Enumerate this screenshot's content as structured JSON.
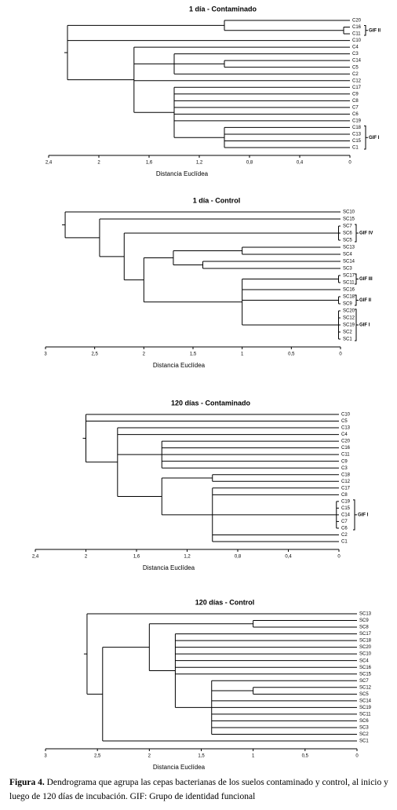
{
  "chart_data": [
    {
      "type": "dendrogram",
      "title": "1 día  -  Contaminado",
      "xlabel": "Distancia Euclídea",
      "xlim": [
        2.4,
        0
      ],
      "xticks": [
        {
          "value": 2.4,
          "label": "2,4"
        },
        2,
        {
          "value": 1.6,
          "label": "1,6"
        },
        {
          "value": 1.2,
          "label": "1,2"
        },
        {
          "value": 0.8,
          "label": "0,8"
        },
        {
          "value": 0.4,
          "label": "0,4"
        },
        0
      ],
      "tree": {
        "height": 2.25,
        "children": [
          {
            "height": 1.0,
            "children": [
              "C20",
              {
                "height": 0.05,
                "group": "GIF II",
                "children": [
                  "C16",
                  "C11"
                ]
              }
            ]
          },
          "C10",
          {
            "height": 1.72,
            "children": [
              "C4",
              {
                "height": 1.4,
                "children": [
                  "C3",
                  {
                    "height": 1.0,
                    "children": [
                      "C14",
                      "C5"
                    ]
                  },
                  "C2"
                ]
              },
              "C12",
              {
                "height": 1.4,
                "children": [
                  "C17",
                  "C9",
                  "C8",
                  "C7",
                  "C6",
                  "C19",
                  {
                    "height": 1.0,
                    "group": "GIF I",
                    "children": [
                      "C18",
                      "C13",
                      "C15",
                      "C1"
                    ]
                  }
                ]
              }
            ]
          }
        ]
      }
    },
    {
      "type": "dendrogram",
      "title": "1 día  -  Control",
      "xlabel": "Distancia Euclídea",
      "xlim": [
        3,
        0
      ],
      "xticks": [
        3,
        {
          "value": 2.5,
          "label": "2,5"
        },
        2,
        {
          "value": 1.5,
          "label": "1,5"
        },
        1,
        {
          "value": 0.5,
          "label": "0,5"
        },
        0
      ],
      "tree": {
        "height": 2.8,
        "children": [
          "SC10",
          {
            "height": 2.45,
            "children": [
              "SC15",
              {
                "height": 2.2,
                "children": [
                  {
                    "height": 0.02,
                    "group": "GIF IV",
                    "children": [
                      "SC7",
                      "SC6",
                      "SC5"
                    ]
                  },
                  {
                    "height": 2.0,
                    "children": [
                      {
                        "height": 1.7,
                        "children": [
                          {
                            "height": 1.0,
                            "children": [
                              "SC13",
                              "SC4"
                            ]
                          },
                          {
                            "height": 1.4,
                            "children": [
                              "SC14",
                              "SC3"
                            ]
                          }
                        ]
                      },
                      {
                        "height": 1.0,
                        "children": [
                          {
                            "height": 0.02,
                            "group": "GIF III",
                            "children": [
                              "SC17",
                              "SC11"
                            ]
                          },
                          "SC16",
                          {
                            "height": 0.02,
                            "group": "GIF II",
                            "children": [
                              "SC18",
                              "SC9"
                            ]
                          },
                          {
                            "height": 0.02,
                            "group": "GIF I",
                            "children": [
                              "SC20",
                              "SC12",
                              "SC19",
                              "SC2",
                              "SC1"
                            ]
                          }
                        ]
                      }
                    ]
                  }
                ]
              }
            ]
          }
        ]
      }
    },
    {
      "type": "dendrogram",
      "title": "120 días   -  Contaminado",
      "xlabel": "Distancia Euclídea",
      "xlim": [
        2.4,
        0
      ],
      "xticks": [
        {
          "value": 2.4,
          "label": "2,4"
        },
        2,
        {
          "value": 1.6,
          "label": "1,6"
        },
        {
          "value": 1.2,
          "label": "1,2"
        },
        {
          "value": 0.8,
          "label": "0,8"
        },
        {
          "value": 0.4,
          "label": "0,4"
        },
        0
      ],
      "tree": {
        "height": 2.0,
        "children": [
          "C10",
          "C5",
          {
            "height": 1.75,
            "children": [
              "C13",
              "C4",
              {
                "height": 1.4,
                "children": [
                  "C20",
                  "C16",
                  "C11",
                  "C9",
                  "C3"
                ]
              },
              {
                "height": 1.4,
                "children": [
                  {
                    "height": 1.0,
                    "children": [
                      "C18",
                      "C12"
                    ]
                  },
                  {
                    "height": 1.0,
                    "children": [
                      "C17",
                      "C8",
                      {
                        "height": 0.02,
                        "group": "GIF I",
                        "children": [
                          "C19",
                          "C15",
                          "C14",
                          "C7",
                          "C6"
                        ]
                      },
                      "C2",
                      "C1"
                    ]
                  }
                ]
              }
            ]
          }
        ]
      }
    },
    {
      "type": "dendrogram",
      "title": "120 días  -  Control",
      "xlabel": "Distancia Euclídea",
      "xlim": [
        3,
        0
      ],
      "xticks": [
        3,
        {
          "value": 2.5,
          "label": "2,5"
        },
        2,
        {
          "value": 1.5,
          "label": "1,5"
        },
        1,
        {
          "value": 0.5,
          "label": "0,5"
        },
        0
      ],
      "tree": {
        "height": 2.6,
        "children": [
          "SC13",
          {
            "height": 2.45,
            "children": [
              {
                "height": 2.0,
                "children": [
                  {
                    "height": 1.0,
                    "children": [
                      "SC9",
                      "SC8"
                    ]
                  },
                  {
                    "height": 1.75,
                    "children": [
                      "SC17",
                      "SC18",
                      "SC20",
                      "SC10",
                      "SC4",
                      "SC16",
                      "SC15",
                      {
                        "height": 1.4,
                        "children": [
                          "SC7",
                          {
                            "height": 1.0,
                            "children": [
                              "SC12",
                              "SC5"
                            ]
                          },
                          "SC14",
                          "SC19",
                          "SC11",
                          "SC6",
                          "SC3",
                          "SC2"
                        ]
                      }
                    ]
                  }
                ]
              },
              "SC1"
            ]
          }
        ]
      }
    }
  ],
  "caption": {
    "label": "Figura 4.",
    "text": "Dendrograma que agrupa las cepas bacterianas de los suelos contaminado y control, al inicio y luego de 120 días de incubación.    GIF: Grupo de identidad funcional"
  }
}
